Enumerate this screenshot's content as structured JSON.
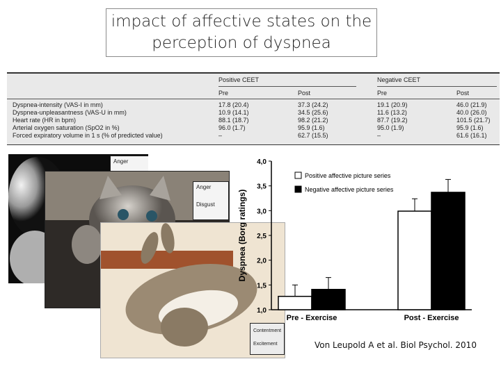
{
  "slide": {
    "title_line1": "impact of affective states on the",
    "title_line2": "perception of dyspnea",
    "citation": "Von Leupold A et al. Biol Psychol. 2010"
  },
  "table": {
    "group_positive": "Positive CEET",
    "group_negative": "Negative CEET",
    "sub_pre": "Pre",
    "sub_post": "Post",
    "rows": [
      {
        "label": "Dyspnea-intensity (VAS-I in mm)",
        "pos_pre": "17.8 (20.4)",
        "pos_post": "37.3 (24.2)",
        "neg_pre": "19.1 (20.9)",
        "neg_post": "46.0 (21.9)"
      },
      {
        "label": "Dyspnea-unpleasantness (VAS-U in mm)",
        "pos_pre": "10.9 (14.1)",
        "pos_post": "34.5 (25.6)",
        "neg_pre": "11.6 (13.2)",
        "neg_post": "40.0 (26.0)"
      },
      {
        "label": "Heart rate (HR in bpm)",
        "pos_pre": "88.1 (18.7)",
        "pos_post": "98.2 (21.2)",
        "neg_pre": "87.7 (19.2)",
        "neg_post": "101.5 (21.7)"
      },
      {
        "label": "Arterial oxygen saturation (SpO2 in %)",
        "pos_pre": "96.0 (1.7)",
        "pos_post": "95.9 (1.6)",
        "neg_pre": "95.0 (1.9)",
        "neg_post": "95.9 (1.6)"
      },
      {
        "label": "Forced expiratory volume in 1 s (% of predicted value)",
        "pos_pre": "–",
        "pos_post": "62.7 (15.5)",
        "neg_pre": "–",
        "neg_post": "61.6 (16.1)"
      }
    ]
  },
  "photo_labels": {
    "p1_scale": "Anger",
    "p2_scale_1": "Anger",
    "p2_scale_2": "Disgust",
    "p3_scale_1": "Contentment",
    "p3_scale_2": "Excitement"
  },
  "colors": {
    "positive": "#ffffff",
    "negative": "#000000"
  },
  "chart_data": {
    "type": "bar",
    "ylabel": "Dyspnea (Borg ratings)",
    "ylim": [
      1.0,
      4.0
    ],
    "yticks": [
      "1,0",
      "1,5",
      "2,0",
      "2,5",
      "3,0",
      "3,5",
      "4,0"
    ],
    "ytick_values": [
      1.0,
      1.5,
      2.0,
      2.5,
      3.0,
      3.5,
      4.0
    ],
    "categories": [
      "Pre - Exercise",
      "Post - Exercise"
    ],
    "series": [
      {
        "name": "Positive affective picture series",
        "values": [
          1.27,
          2.99
        ],
        "errors": [
          0.23,
          0.25
        ]
      },
      {
        "name": "Negative affective picture series",
        "values": [
          1.41,
          3.37
        ],
        "errors": [
          0.24,
          0.26
        ]
      }
    ],
    "legend": "top-right"
  }
}
